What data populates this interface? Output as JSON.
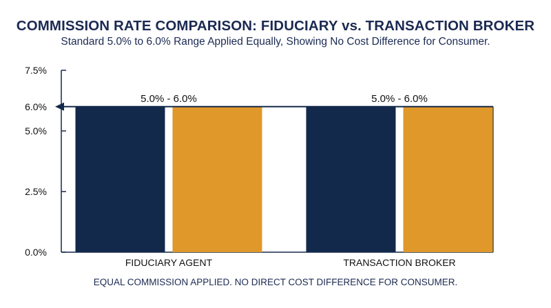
{
  "chart_data": {
    "type": "bar",
    "title": "COMMISSION RATE COMPARISON: FIDUCIARY vs. TRANSACTION BROKER",
    "subtitle": "Standard 5.0% to 6.0% Range Applied Equally, Showing No Cost Difference for Consumer.",
    "footnote": "EQUAL COMMISSION APPLIED. NO DIRECT COST DIFFERENCE FOR CONSUMER.",
    "categories": [
      "FIDUCIARY AGENT",
      "TRANSACTION BROKER"
    ],
    "series": [
      {
        "values": [
          6.0,
          6.0
        ],
        "color": "#13294b"
      },
      {
        "values": [
          6.0,
          6.0
        ],
        "color": "#e0982a"
      }
    ],
    "data_labels": [
      "5.0% - 6.0%",
      "5.0% - 6.0%"
    ],
    "y_ticks": [
      {
        "value": 0.0,
        "label": "0.0%"
      },
      {
        "value": 2.5,
        "label": "2.5%"
      },
      {
        "value": 5.0,
        "label": "5.0%"
      },
      {
        "value": 6.0,
        "label": "6.0%"
      },
      {
        "value": 7.5,
        "label": "7.5%"
      }
    ],
    "reference_line": {
      "value": 6.0,
      "color": "#13294b"
    },
    "ylim": [
      0,
      7.5
    ],
    "grid": false,
    "legend": "none",
    "xlabel": "",
    "ylabel": ""
  }
}
